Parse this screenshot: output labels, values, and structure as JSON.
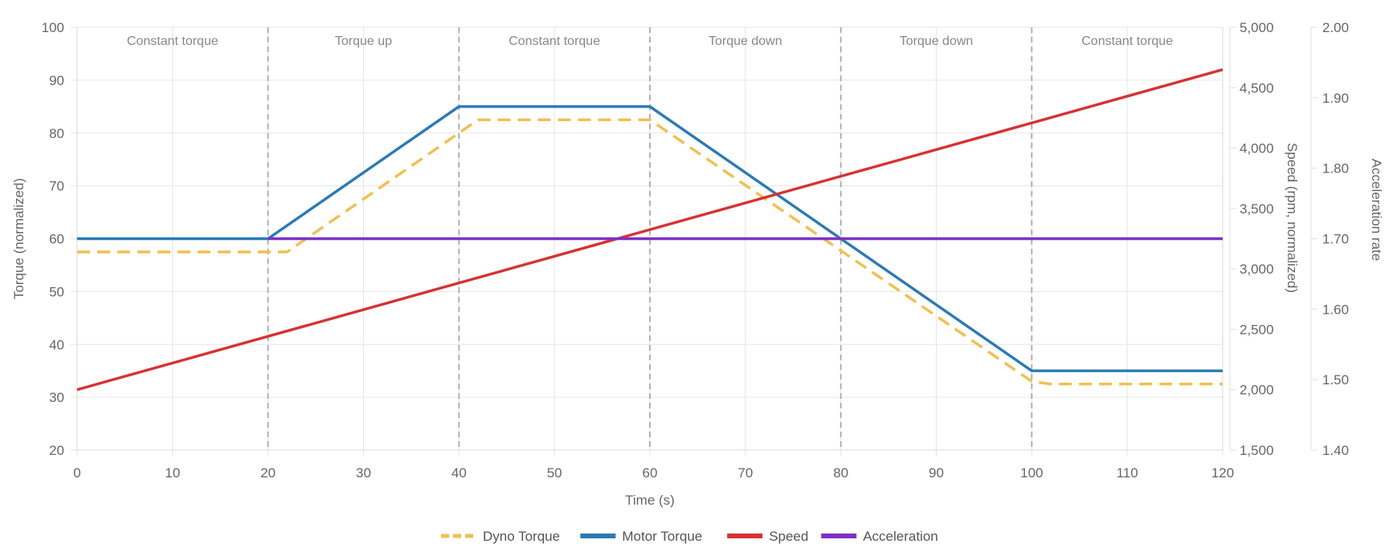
{
  "chart_data": {
    "type": "line",
    "xlabel": "Time (s)",
    "xlim": [
      0,
      120
    ],
    "x_ticks": [
      "0",
      "10",
      "20",
      "30",
      "40",
      "50",
      "60",
      "70",
      "80",
      "90",
      "100",
      "110",
      "120"
    ],
    "y_axes": {
      "torque": {
        "label": "Torque (normalized)",
        "lim": [
          20,
          100
        ],
        "ticks": [
          "20",
          "30",
          "40",
          "50",
          "60",
          "70",
          "80",
          "90",
          "100"
        ]
      },
      "speed": {
        "label": "Speed (rpm, normalized)",
        "lim": [
          1500,
          5000
        ],
        "ticks": [
          "1,500",
          "2,000",
          "2,500",
          "3,000",
          "3,500",
          "4,000",
          "4,500",
          "5,000"
        ]
      },
      "acceleration": {
        "label": "Acceleration rate",
        "lim": [
          1.4,
          2.0
        ],
        "ticks": [
          "1.40",
          "1.50",
          "1.60",
          "1.70",
          "1.80",
          "1.90",
          "2.00"
        ]
      }
    },
    "regions": [
      {
        "label": "Constant torque",
        "start": 0,
        "end": 20
      },
      {
        "label": "Torque up",
        "start": 20,
        "end": 40
      },
      {
        "label": "Constant torque",
        "start": 40,
        "end": 60
      },
      {
        "label": "Torque down",
        "start": 60,
        "end": 80
      },
      {
        "label": "Torque down",
        "start": 80,
        "end": 100
      },
      {
        "label": "Constant torque",
        "start": 100,
        "end": 120
      }
    ],
    "dividers": [
      20,
      40,
      60,
      80,
      100
    ],
    "series": [
      {
        "name": "Dyno Torque",
        "axis": "torque",
        "color": "#f2bf4f",
        "dashed": true,
        "points": [
          [
            0,
            57.5
          ],
          [
            22,
            57.5
          ],
          [
            42,
            82.5
          ],
          [
            60,
            82.5
          ],
          [
            100,
            33
          ],
          [
            102,
            32.5
          ],
          [
            120,
            32.5
          ]
        ]
      },
      {
        "name": "Motor Torque",
        "axis": "torque",
        "color": "#2a7ab6",
        "dashed": false,
        "points": [
          [
            0,
            60
          ],
          [
            20,
            60
          ],
          [
            40,
            85
          ],
          [
            60,
            85
          ],
          [
            100,
            35
          ],
          [
            120,
            35
          ]
        ]
      },
      {
        "name": "Speed",
        "axis": "speed",
        "color": "#d63232",
        "dashed": false,
        "points": [
          [
            0,
            2000
          ],
          [
            120,
            4650
          ]
        ]
      },
      {
        "name": "Acceleration",
        "axis": "acceleration",
        "color": "#7e2fc6",
        "dashed": false,
        "points": [
          [
            20,
            1.7
          ],
          [
            120,
            1.7
          ]
        ]
      }
    ],
    "grid": true,
    "legend_position": "bottom-center"
  }
}
